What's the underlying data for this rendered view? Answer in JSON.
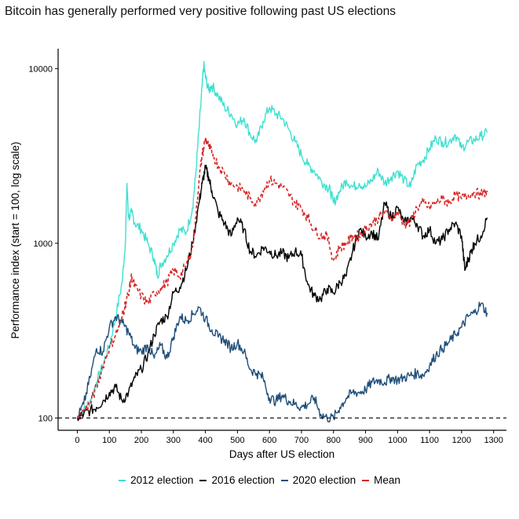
{
  "chart_data": {
    "type": "line",
    "title": "Bitcoin has generally performed very positive following past US elections",
    "xlabel": "Days after US election",
    "ylabel": "Performance index (start = 100, log scale)",
    "xlim": [
      -60,
      1340
    ],
    "ylim": [
      85,
      13000
    ],
    "xticks": [
      0,
      100,
      200,
      300,
      400,
      500,
      600,
      700,
      800,
      900,
      1000,
      1100,
      1200,
      1300
    ],
    "xtick_labels": [
      "0",
      "100",
      "200",
      "300",
      "400",
      "500",
      "600",
      "700",
      "800",
      "900",
      "1000",
      "1100",
      "1200",
      "1300"
    ],
    "yticks": [
      100,
      1000,
      10000
    ],
    "ytick_labels": [
      "100",
      "1000",
      "10000"
    ],
    "reference_line": 100,
    "legend_position": "bottom",
    "series": [
      {
        "name": "2012 election",
        "color": "#40E0D0",
        "style": "solid",
        "x": [
          0,
          20,
          40,
          60,
          80,
          100,
          120,
          140,
          150,
          155,
          160,
          170,
          180,
          200,
          220,
          240,
          250,
          260,
          280,
          300,
          320,
          340,
          360,
          370,
          380,
          390,
          395,
          400,
          410,
          420,
          440,
          460,
          480,
          500,
          520,
          540,
          560,
          580,
          600,
          620,
          640,
          660,
          680,
          700,
          720,
          740,
          760,
          780,
          790,
          800,
          820,
          840,
          860,
          880,
          900,
          920,
          940,
          960,
          980,
          1000,
          1020,
          1040,
          1060,
          1080,
          1100,
          1120,
          1140,
          1160,
          1180,
          1200,
          1220,
          1240,
          1260,
          1280
        ],
        "values": [
          100,
          110,
          125,
          160,
          200,
          260,
          380,
          600,
          1000,
          2200,
          1400,
          1500,
          1300,
          1200,
          1000,
          820,
          650,
          750,
          850,
          1000,
          1200,
          1150,
          1600,
          2500,
          4500,
          8000,
          10500,
          9000,
          7500,
          8000,
          7000,
          6000,
          5500,
          4800,
          5200,
          4200,
          3800,
          5000,
          6000,
          5500,
          5200,
          4500,
          3800,
          3200,
          2800,
          2600,
          2300,
          2100,
          2000,
          1700,
          2000,
          2300,
          2100,
          2200,
          2100,
          2300,
          2600,
          2200,
          2400,
          2600,
          2300,
          2100,
          2800,
          3000,
          3500,
          4000,
          3800,
          3800,
          4200,
          3500,
          3800,
          3900,
          4100,
          4300
        ]
      },
      {
        "name": "2016 election",
        "color": "#000000",
        "style": "solid",
        "x": [
          0,
          20,
          40,
          60,
          80,
          100,
          120,
          140,
          160,
          180,
          200,
          220,
          240,
          260,
          280,
          300,
          320,
          340,
          360,
          380,
          390,
          400,
          410,
          420,
          440,
          460,
          480,
          500,
          520,
          540,
          560,
          580,
          600,
          620,
          640,
          660,
          680,
          700,
          720,
          740,
          760,
          780,
          800,
          820,
          840,
          860,
          880,
          900,
          920,
          940,
          960,
          980,
          1000,
          1020,
          1040,
          1060,
          1080,
          1100,
          1120,
          1140,
          1160,
          1180,
          1200,
          1210,
          1220,
          1230,
          1240,
          1260,
          1280
        ],
        "values": [
          100,
          105,
          110,
          115,
          125,
          140,
          150,
          125,
          140,
          170,
          190,
          230,
          300,
          360,
          380,
          520,
          560,
          700,
          1000,
          1700,
          2200,
          2700,
          2400,
          2000,
          1500,
          1300,
          1100,
          1400,
          1200,
          900,
          850,
          950,
          900,
          850,
          880,
          820,
          900,
          850,
          580,
          500,
          480,
          550,
          520,
          600,
          650,
          900,
          1200,
          1100,
          1150,
          1050,
          1700,
          1400,
          1600,
          1300,
          1400,
          1300,
          1100,
          1200,
          1000,
          1050,
          1200,
          1300,
          1100,
          700,
          800,
          900,
          1000,
          1100,
          1400
        ]
      },
      {
        "name": "2020 election",
        "color": "#1F4E79",
        "style": "solid",
        "x": [
          0,
          20,
          40,
          60,
          80,
          100,
          120,
          140,
          160,
          180,
          200,
          220,
          240,
          260,
          280,
          300,
          320,
          340,
          360,
          380,
          400,
          420,
          440,
          460,
          480,
          500,
          520,
          540,
          560,
          580,
          600,
          620,
          640,
          660,
          680,
          700,
          720,
          740,
          760,
          780,
          800,
          820,
          840,
          860,
          880,
          900,
          920,
          940,
          960,
          980,
          1000,
          1020,
          1040,
          1060,
          1080,
          1100,
          1120,
          1140,
          1160,
          1180,
          1200,
          1220,
          1240,
          1260,
          1280
        ],
        "values": [
          100,
          120,
          170,
          250,
          240,
          330,
          380,
          350,
          310,
          250,
          240,
          260,
          220,
          260,
          220,
          290,
          380,
          360,
          390,
          430,
          370,
          320,
          290,
          280,
          250,
          270,
          240,
          190,
          180,
          170,
          130,
          125,
          135,
          125,
          120,
          115,
          120,
          130,
          105,
          100,
          100,
          115,
          130,
          140,
          140,
          145,
          160,
          165,
          160,
          170,
          165,
          170,
          175,
          180,
          175,
          200,
          230,
          250,
          270,
          300,
          330,
          380,
          400,
          450,
          400
        ]
      },
      {
        "name": "Mean",
        "color": "#D62728",
        "style": "dashed",
        "x": [
          0,
          20,
          40,
          60,
          80,
          100,
          120,
          140,
          150,
          160,
          170,
          180,
          200,
          220,
          240,
          260,
          280,
          300,
          320,
          340,
          360,
          370,
          380,
          390,
          400,
          410,
          420,
          440,
          460,
          480,
          500,
          520,
          540,
          560,
          580,
          600,
          620,
          640,
          660,
          680,
          700,
          720,
          740,
          760,
          780,
          800,
          820,
          840,
          860,
          880,
          900,
          920,
          940,
          960,
          980,
          1000,
          1020,
          1040,
          1060,
          1080,
          1100,
          1120,
          1140,
          1160,
          1180,
          1200,
          1220,
          1240,
          1260,
          1280
        ],
        "values": [
          100,
          110,
          120,
          150,
          200,
          250,
          300,
          380,
          450,
          520,
          650,
          560,
          500,
          450,
          520,
          550,
          600,
          700,
          650,
          750,
          950,
          1400,
          2300,
          3200,
          4000,
          3600,
          3300,
          2800,
          2500,
          2200,
          2100,
          2000,
          1800,
          1700,
          2000,
          2300,
          2200,
          2100,
          1900,
          1700,
          1600,
          1400,
          1200,
          1100,
          1100,
          800,
          950,
          1000,
          1100,
          1100,
          1200,
          1300,
          1400,
          1500,
          1400,
          1500,
          1300,
          1300,
          1600,
          1700,
          1600,
          1700,
          1800,
          1700,
          1900,
          1800,
          1900,
          1950,
          1900,
          2000
        ]
      }
    ]
  }
}
